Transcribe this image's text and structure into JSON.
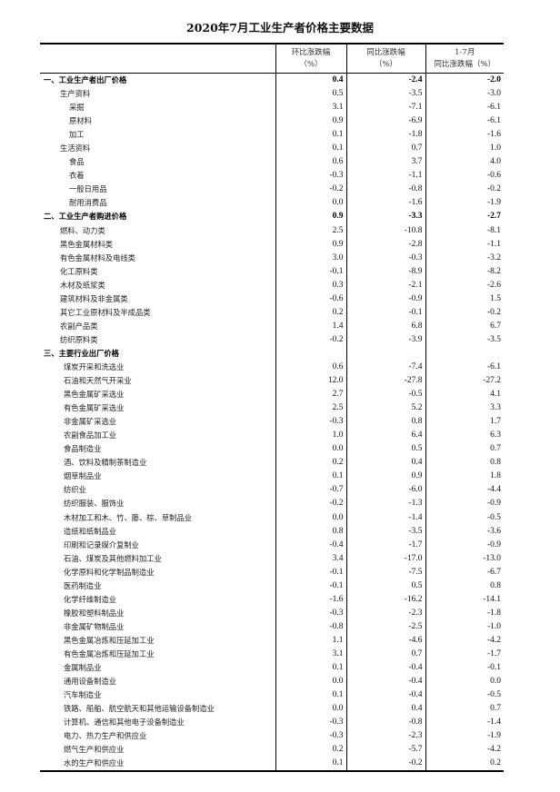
{
  "title": "2020年7月工业生产者价格主要数据",
  "headers": {
    "mom": [
      "环比涨跌幅",
      "（%）"
    ],
    "yoy": [
      "同比涨跌幅",
      "（%）"
    ],
    "ytd": [
      "1-7月",
      "同比涨跌幅（%）"
    ]
  },
  "rows": [
    {
      "label": "一、工业生产者出厂价格",
      "level": 0,
      "bold": true,
      "mom": "0.4",
      "yoy": "-2.4",
      "ytd": "-2.0"
    },
    {
      "label": "生产资料",
      "level": 1,
      "mom": "0.5",
      "yoy": "-3.5",
      "ytd": "-3.0"
    },
    {
      "label": "采掘",
      "level": 2,
      "mom": "3.1",
      "yoy": "-7.1",
      "ytd": "-6.1"
    },
    {
      "label": "原材料",
      "level": 2,
      "mom": "0.9",
      "yoy": "-6.9",
      "ytd": "-6.1"
    },
    {
      "label": "加工",
      "level": 2,
      "mom": "0.1",
      "yoy": "-1.8",
      "ytd": "-1.6"
    },
    {
      "label": "生活资料",
      "level": 1,
      "mom": "0.1",
      "yoy": "0.7",
      "ytd": "1.0"
    },
    {
      "label": "食品",
      "level": 2,
      "mom": "0.6",
      "yoy": "3.7",
      "ytd": "4.0"
    },
    {
      "label": "衣着",
      "level": 2,
      "mom": "-0.3",
      "yoy": "-1.1",
      "ytd": "-0.6"
    },
    {
      "label": "一般日用品",
      "level": 2,
      "mom": "-0.2",
      "yoy": "-0.8",
      "ytd": "-0.2"
    },
    {
      "label": "耐用消费品",
      "level": 2,
      "mom": "0.0",
      "yoy": "-1.6",
      "ytd": "-1.9"
    },
    {
      "label": "二、工业生产者购进价格",
      "level": 0,
      "bold": true,
      "mom": "0.9",
      "yoy": "-3.3",
      "ytd": "-2.7"
    },
    {
      "label": "燃料、动力类",
      "level": 1,
      "mom": "2.5",
      "yoy": "-10.8",
      "ytd": "-8.1"
    },
    {
      "label": "黑色金属材料类",
      "level": 1,
      "mom": "0.9",
      "yoy": "-2.8",
      "ytd": "-1.1"
    },
    {
      "label": "有色金属材料及电线类",
      "level": 1,
      "mom": "3.0",
      "yoy": "-0.3",
      "ytd": "-3.2"
    },
    {
      "label": "化工原料类",
      "level": 1,
      "mom": "-0.1",
      "yoy": "-8.9",
      "ytd": "-8.2"
    },
    {
      "label": "木材及纸浆类",
      "level": 1,
      "mom": "0.3",
      "yoy": "-2.1",
      "ytd": "-2.6"
    },
    {
      "label": "建筑材料及非金属类",
      "level": 1,
      "mom": "-0.6",
      "yoy": "-0.9",
      "ytd": "1.5"
    },
    {
      "label": "其它工业原材料及半成品类",
      "level": 1,
      "mom": "0.2",
      "yoy": "-0.1",
      "ytd": "-0.2"
    },
    {
      "label": "农副产品类",
      "level": 1,
      "mom": "1.4",
      "yoy": "6.8",
      "ytd": "6.7"
    },
    {
      "label": "纺织原料类",
      "level": 1,
      "mom": "-0.2",
      "yoy": "-3.9",
      "ytd": "-3.5"
    },
    {
      "label": "三、主要行业出厂价格",
      "level": 0,
      "bold": true,
      "mom": "",
      "yoy": "",
      "ytd": ""
    },
    {
      "label": "煤炭开采和洗选业",
      "level": 3,
      "mom": "0.6",
      "yoy": "-7.4",
      "ytd": "-6.1"
    },
    {
      "label": "石油和天然气开采业",
      "level": 3,
      "mom": "12.0",
      "yoy": "-27.8",
      "ytd": "-27.2"
    },
    {
      "label": "黑色金属矿采选业",
      "level": 3,
      "mom": "2.7",
      "yoy": "-0.5",
      "ytd": "4.1"
    },
    {
      "label": "有色金属矿采选业",
      "level": 3,
      "mom": "2.5",
      "yoy": "5.2",
      "ytd": "3.3"
    },
    {
      "label": "非金属矿采选业",
      "level": 3,
      "mom": "-0.3",
      "yoy": "0.8",
      "ytd": "1.7"
    },
    {
      "label": "农副食品加工业",
      "level": 3,
      "mom": "1.0",
      "yoy": "6.4",
      "ytd": "6.3"
    },
    {
      "label": "食品制造业",
      "level": 3,
      "mom": "0.0",
      "yoy": "0.5",
      "ytd": "0.7"
    },
    {
      "label": "酒、饮料及精制茶制造业",
      "level": 3,
      "mom": "0.2",
      "yoy": "0.4",
      "ytd": "0.8"
    },
    {
      "label": "烟草制品业",
      "level": 3,
      "mom": "0.1",
      "yoy": "0.9",
      "ytd": "1.8"
    },
    {
      "label": "纺织业",
      "level": 3,
      "mom": "-0.7",
      "yoy": "-6.0",
      "ytd": "-4.4"
    },
    {
      "label": "纺织服装、服饰业",
      "level": 3,
      "mom": "-0.2",
      "yoy": "-1.3",
      "ytd": "-0.9"
    },
    {
      "label": "木材加工和木、竹、藤、棕、草制品业",
      "level": 3,
      "mom": "0.0",
      "yoy": "-1.4",
      "ytd": "-0.5"
    },
    {
      "label": "造纸和纸制品业",
      "level": 3,
      "mom": "0.8",
      "yoy": "-3.5",
      "ytd": "-3.6"
    },
    {
      "label": "印刷和记录媒介复制业",
      "level": 3,
      "mom": "-0.4",
      "yoy": "-1.7",
      "ytd": "-0.9"
    },
    {
      "label": "石油、煤炭及其他燃料加工业",
      "level": 3,
      "mom": "3.4",
      "yoy": "-17.0",
      "ytd": "-13.0"
    },
    {
      "label": "化学原料和化学制品制造业",
      "level": 3,
      "mom": "-0.1",
      "yoy": "-7.5",
      "ytd": "-6.7"
    },
    {
      "label": "医药制造业",
      "level": 3,
      "mom": "-0.1",
      "yoy": "0.5",
      "ytd": "0.8"
    },
    {
      "label": "化学纤维制造业",
      "level": 3,
      "mom": "-1.6",
      "yoy": "-16.2",
      "ytd": "-14.1"
    },
    {
      "label": "橡胶和塑料制品业",
      "level": 3,
      "mom": "-0.3",
      "yoy": "-2.3",
      "ytd": "-1.8"
    },
    {
      "label": "非金属矿物制品业",
      "level": 3,
      "mom": "-0.8",
      "yoy": "-2.5",
      "ytd": "-1.0"
    },
    {
      "label": "黑色金属冶炼和压延加工业",
      "level": 3,
      "mom": "1.1",
      "yoy": "-4.6",
      "ytd": "-4.2"
    },
    {
      "label": "有色金属冶炼和压延加工业",
      "level": 3,
      "mom": "3.1",
      "yoy": "0.7",
      "ytd": "-1.7"
    },
    {
      "label": "金属制品业",
      "level": 3,
      "mom": "0.1",
      "yoy": "-0.4",
      "ytd": "-0.1"
    },
    {
      "label": "通用设备制造业",
      "level": 3,
      "mom": "0.0",
      "yoy": "-0.4",
      "ytd": "0.0"
    },
    {
      "label": "汽车制造业",
      "level": 3,
      "mom": "0.1",
      "yoy": "-0.4",
      "ytd": "-0.5"
    },
    {
      "label": "铁路、船舶、航空航天和其他运输设备制造业",
      "level": 3,
      "mom": "0.0",
      "yoy": "0.4",
      "ytd": "0.7"
    },
    {
      "label": "计算机、通信和其他电子设备制造业",
      "level": 3,
      "mom": "-0.3",
      "yoy": "-0.8",
      "ytd": "-1.4"
    },
    {
      "label": "电力、热力生产和供应业",
      "level": 3,
      "mom": "-0.3",
      "yoy": "-2.3",
      "ytd": "-1.9"
    },
    {
      "label": "燃气生产和供应业",
      "level": 3,
      "mom": "0.2",
      "yoy": "-5.7",
      "ytd": "-4.2"
    },
    {
      "label": "水的生产和供应业",
      "level": 3,
      "mom": "0.1",
      "yoy": "-0.2",
      "ytd": "0.2"
    }
  ]
}
